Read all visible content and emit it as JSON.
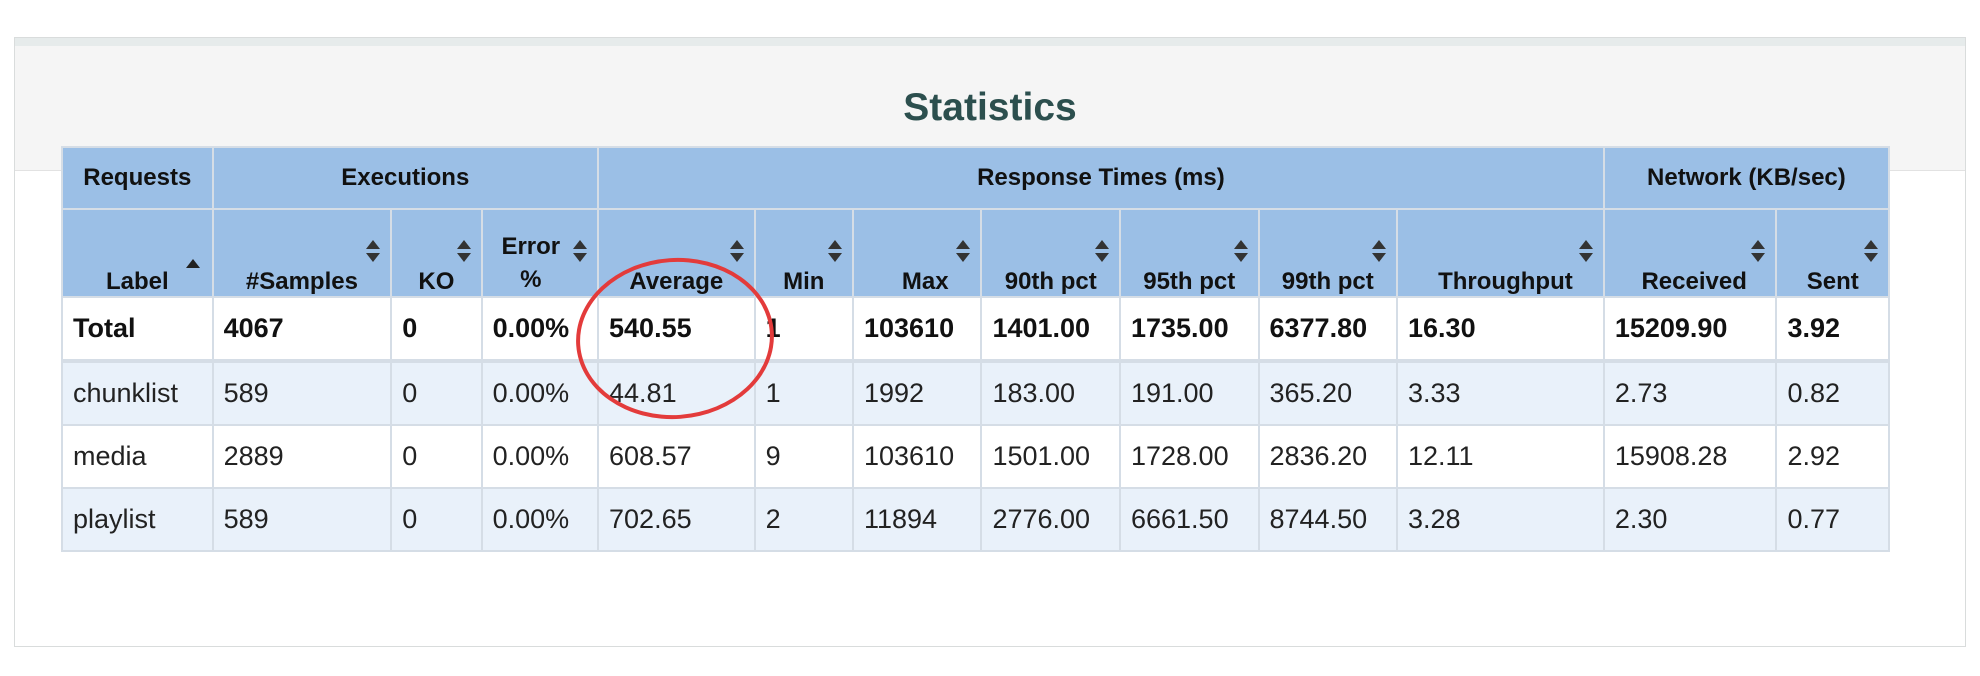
{
  "panel": {
    "title": "Statistics"
  },
  "colors": {
    "header_bg": "#9bbfe6",
    "stripe_bg": "#e9f1fa",
    "title_color": "#2c4f4e",
    "highlight": "#e33b3b"
  },
  "groups": {
    "requests": "Requests",
    "executions": "Executions",
    "response_times": "Response Times (ms)",
    "network": "Network (KB/sec)"
  },
  "columns": {
    "label": "Label",
    "samples": "#Samples",
    "ko": "KO",
    "error_line1": "Error",
    "error_line2": "%",
    "average": "Average",
    "min": "Min",
    "max": "Max",
    "pct90": "90th pct",
    "pct95": "95th pct",
    "pct99": "99th pct",
    "throughput": "Throughput",
    "received": "Received",
    "sent": "Sent"
  },
  "rows": [
    {
      "label": "Total",
      "samples": "4067",
      "ko": "0",
      "error": "0.00%",
      "average": "540.55",
      "min": "1",
      "max": "103610",
      "pct90": "1401.00",
      "pct95": "1735.00",
      "pct99": "6377.80",
      "throughput": "16.30",
      "received": "15209.90",
      "sent": "3.92"
    },
    {
      "label": "chunklist",
      "samples": "589",
      "ko": "0",
      "error": "0.00%",
      "average": "44.81",
      "min": "1",
      "max": "1992",
      "pct90": "183.00",
      "pct95": "191.00",
      "pct99": "365.20",
      "throughput": "3.33",
      "received": "2.73",
      "sent": "0.82"
    },
    {
      "label": "media",
      "samples": "2889",
      "ko": "0",
      "error": "0.00%",
      "average": "608.57",
      "min": "9",
      "max": "103610",
      "pct90": "1501.00",
      "pct95": "1728.00",
      "pct99": "2836.20",
      "throughput": "12.11",
      "received": "15908.28",
      "sent": "2.92"
    },
    {
      "label": "playlist",
      "samples": "589",
      "ko": "0",
      "error": "0.00%",
      "average": "702.65",
      "min": "2",
      "max": "11894",
      "pct90": "2776.00",
      "pct95": "6661.50",
      "pct99": "8744.50",
      "throughput": "3.28",
      "received": "2.30",
      "sent": "0.77"
    }
  ]
}
